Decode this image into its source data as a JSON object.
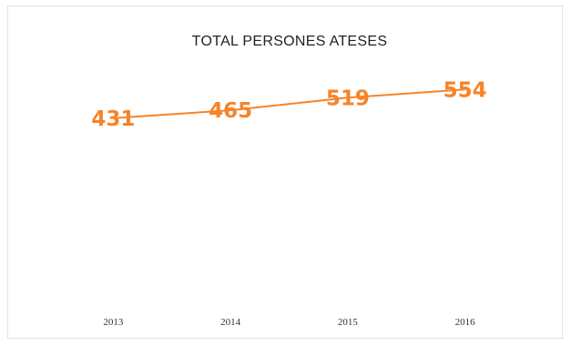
{
  "chart_data": {
    "type": "line",
    "title": "TOTAL PERSONES ATESES",
    "categories": [
      "2013",
      "2014",
      "2015",
      "2016"
    ],
    "series": [
      {
        "values": [
          431,
          465,
          519,
          554
        ],
        "color": "#f5842a"
      }
    ],
    "ylim": [
      0,
      1000
    ],
    "grid": false,
    "legend": "none",
    "data_labels": true
  }
}
